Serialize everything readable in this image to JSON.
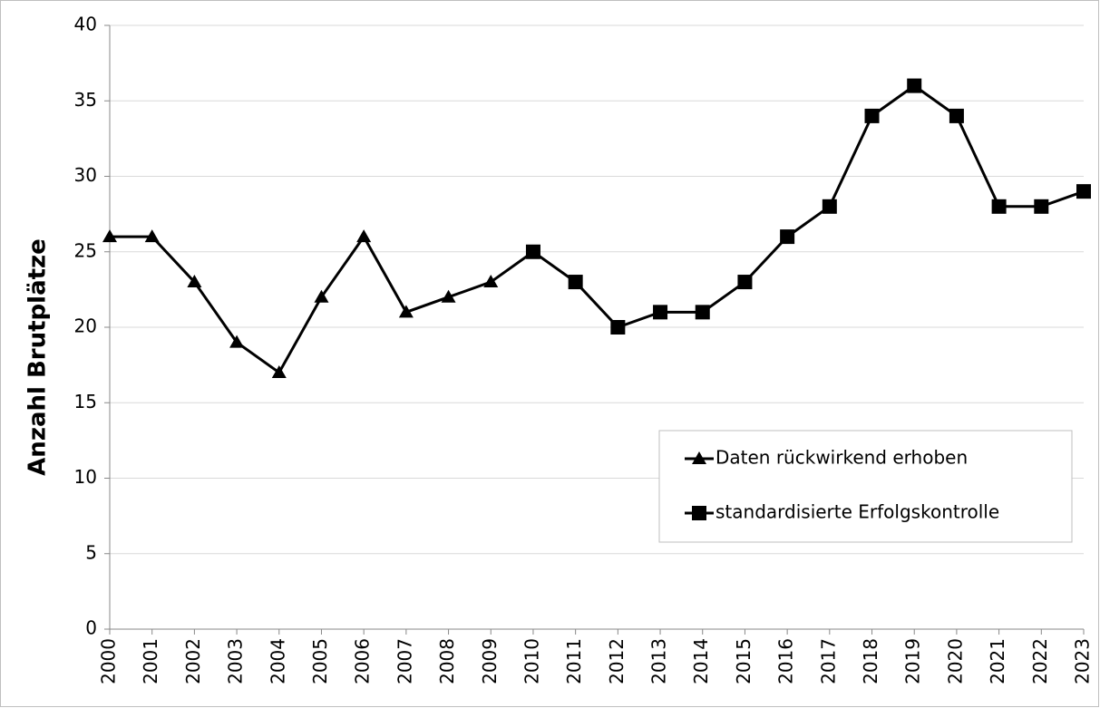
{
  "chart_data": {
    "type": "line",
    "y_label": "Anzahl Brutplätze",
    "categories": [
      "2000",
      "2001",
      "2002",
      "2003",
      "2004",
      "2005",
      "2006",
      "2007",
      "2008",
      "2009",
      "2010",
      "2011",
      "2012",
      "2013",
      "2014",
      "2015",
      "2016",
      "2017",
      "2018",
      "2019",
      "2020",
      "2021",
      "2022",
      "2023"
    ],
    "series": [
      {
        "name": "Daten rückwirkend erhoben",
        "color": "#000000",
        "marker": "triangle",
        "values": [
          26,
          26,
          23,
          19,
          17,
          22,
          26,
          21,
          22,
          23,
          25,
          null,
          null,
          null,
          null,
          null,
          null,
          null,
          null,
          null,
          null,
          null,
          null,
          null
        ]
      },
      {
        "name": "standardisierte Erfolgskontrolle",
        "color": "#000000",
        "marker": "square",
        "values": [
          null,
          null,
          null,
          null,
          null,
          null,
          null,
          null,
          null,
          null,
          25,
          23,
          20,
          21,
          21,
          23,
          26,
          28,
          34,
          36,
          34,
          28,
          28,
          29
        ]
      }
    ],
    "ylim": [
      0,
      40
    ],
    "yticks": [
      0,
      5,
      10,
      15,
      20,
      25,
      30,
      35,
      40
    ],
    "grid": true,
    "legend": "lower right"
  }
}
